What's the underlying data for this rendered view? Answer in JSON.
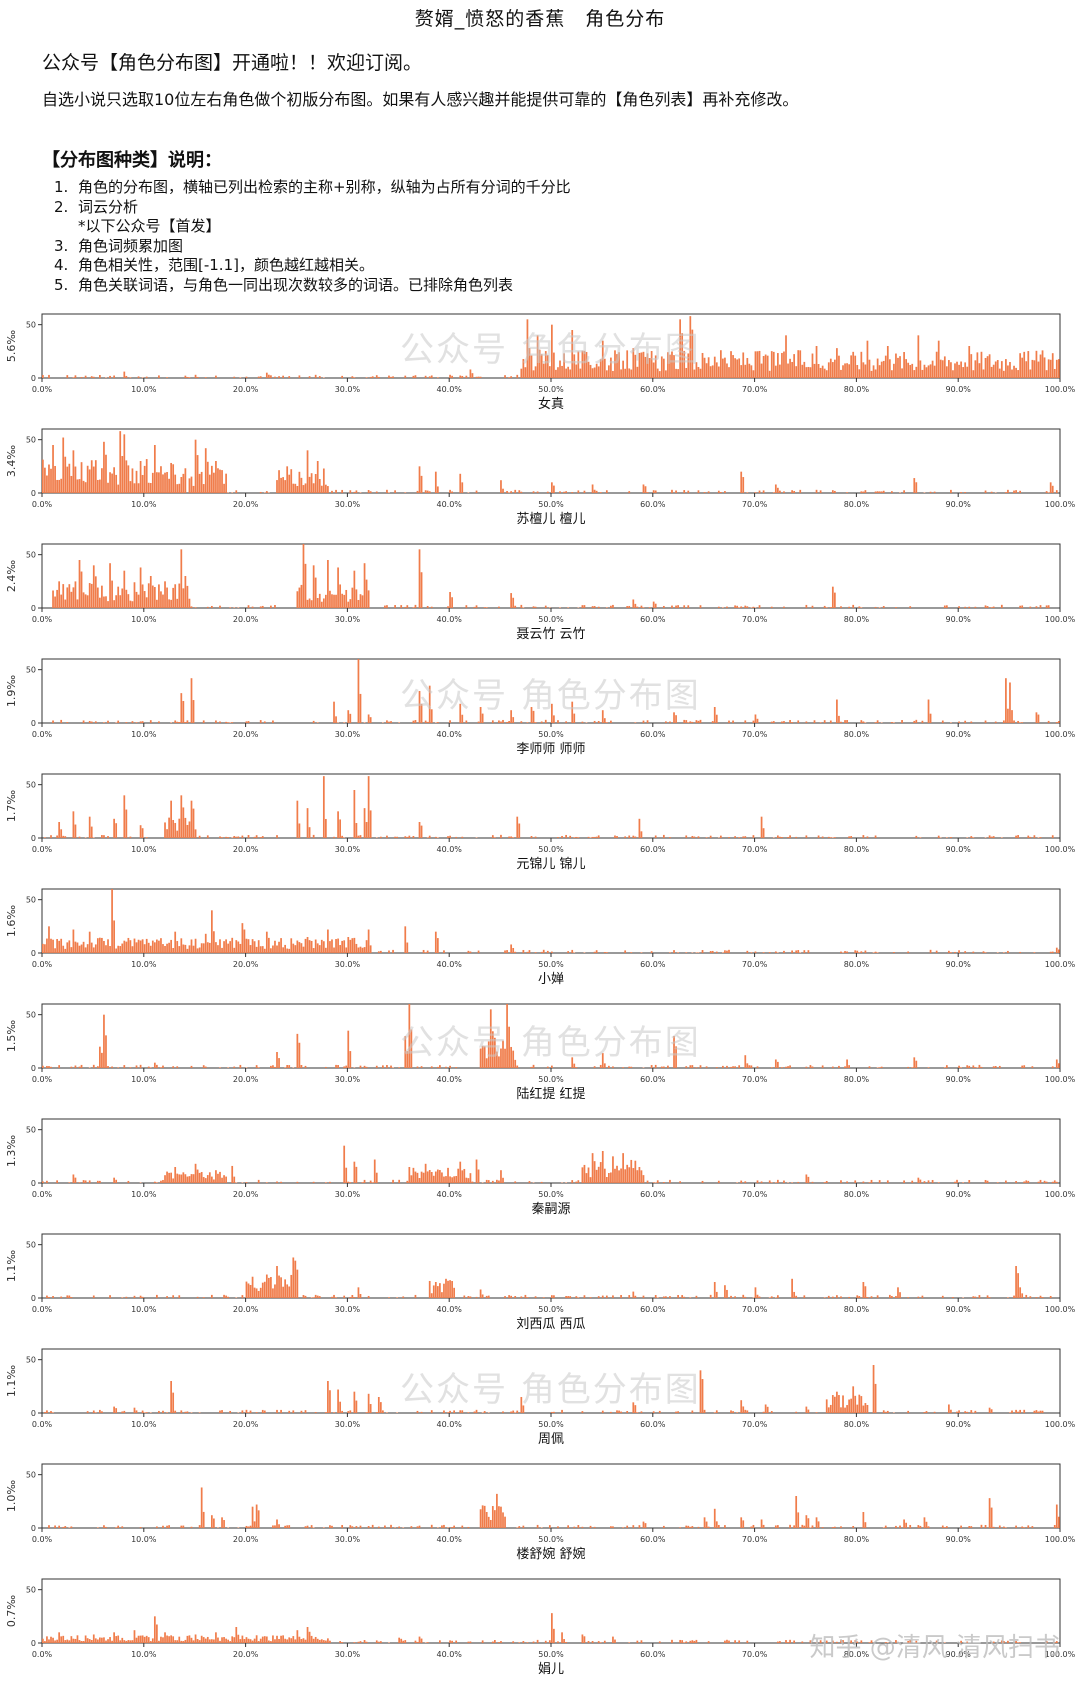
{
  "header": {
    "title": "赘婿_愤怒的香蕉　角色分布",
    "intro_line1": "公众号【角色分布图】开通啦！！欢迎订阅。",
    "intro_line2": "自选小说只选取10位左右角色做个初版分布图。如果有人感兴趣并能提供可靠的【角色列表】再补充修改。"
  },
  "notes": {
    "title": "【分布图种类】说明：",
    "items": [
      {
        "num": "1.",
        "text": "角色的分布图，横轴已列出检索的主称+别称，纵轴为占所有分词的千分比"
      },
      {
        "num": "2.",
        "text": "词云分析"
      },
      {
        "num": "",
        "text": "*以下公众号【首发】"
      },
      {
        "num": "3.",
        "text": "角色词频累加图"
      },
      {
        "num": "4.",
        "text": "角色相关性，范围[-1.1]，颜色越红越相关。"
      },
      {
        "num": "5.",
        "text": "角色关联词语，与角色一同出现次数较多的词语。已排除角色列表"
      }
    ]
  },
  "watermarks": {
    "main": "公众号  角色分布图",
    "footer": "知乎 @清风  清风扫书"
  },
  "colors": {
    "bar": "#f07c4a",
    "axis": "#333333"
  },
  "chart_data": [
    {
      "type": "bar",
      "title": "女真",
      "ylabel": "5.6‰",
      "ytick": "50",
      "ylim": [
        0,
        60
      ],
      "xticks": [
        "0.0%",
        "10.0%",
        "20.0%",
        "30.0%",
        "40.0%",
        "50.0%",
        "60.0%",
        "70.0%",
        "80.0%",
        "90.0%",
        "100.0%"
      ],
      "segments": [
        {
          "from": 47,
          "to": 100,
          "level": 18
        }
      ],
      "peaks": [
        [
          8,
          6
        ],
        [
          15,
          3
        ],
        [
          22,
          5
        ],
        [
          40,
          3
        ],
        [
          42,
          8
        ],
        [
          47.5,
          55
        ],
        [
          48.5,
          40
        ],
        [
          50,
          50
        ],
        [
          52,
          45
        ],
        [
          55,
          35
        ],
        [
          58,
          28
        ],
        [
          62.5,
          55
        ],
        [
          63.5,
          58
        ],
        [
          66,
          20
        ],
        [
          70,
          25
        ],
        [
          73,
          40
        ],
        [
          76,
          30
        ],
        [
          78,
          28
        ],
        [
          81,
          35
        ],
        [
          83,
          30
        ],
        [
          86,
          40
        ],
        [
          88,
          35
        ],
        [
          91,
          30
        ],
        [
          95,
          15
        ],
        [
          98,
          22
        ]
      ]
    },
    {
      "type": "bar",
      "title": "苏檀儿 檀儿",
      "ylabel": "3.4‰",
      "ytick": "50",
      "ylim": [
        0,
        60
      ],
      "xticks": [
        "0.0%",
        "10.0%",
        "20.0%",
        "30.0%",
        "40.0%",
        "50.0%",
        "60.0%",
        "70.0%",
        "80.0%",
        "90.0%",
        "100.0%"
      ],
      "segments": [
        {
          "from": 0,
          "to": 14,
          "level": 22
        },
        {
          "from": 14.5,
          "to": 18,
          "level": 18
        },
        {
          "from": 23,
          "to": 28,
          "level": 16
        }
      ],
      "peaks": [
        [
          1,
          45
        ],
        [
          2,
          52
        ],
        [
          3,
          40
        ],
        [
          6,
          48
        ],
        [
          7.5,
          58
        ],
        [
          8,
          55
        ],
        [
          9.5,
          30
        ],
        [
          11,
          45
        ],
        [
          15,
          50
        ],
        [
          16,
          42
        ],
        [
          17,
          30
        ],
        [
          24,
          25
        ],
        [
          26,
          40
        ],
        [
          27,
          30
        ],
        [
          37,
          25
        ],
        [
          38.5,
          20
        ],
        [
          41,
          18
        ],
        [
          45,
          12
        ],
        [
          50,
          10
        ],
        [
          54,
          8
        ],
        [
          59,
          8
        ],
        [
          68.5,
          20
        ],
        [
          72,
          8
        ],
        [
          85.5,
          14
        ],
        [
          99,
          10
        ]
      ]
    },
    {
      "type": "bar",
      "title": "聂云竹 云竹",
      "ylabel": "2.4‰",
      "ytick": "50",
      "ylim": [
        0,
        60
      ],
      "xticks": [
        "0.0%",
        "10.0%",
        "20.0%",
        "30.0%",
        "40.0%",
        "50.0%",
        "60.0%",
        "70.0%",
        "80.0%",
        "90.0%",
        "100.0%"
      ],
      "segments": [
        {
          "from": 1,
          "to": 14.5,
          "level": 18
        },
        {
          "from": 25,
          "to": 32,
          "level": 16
        }
      ],
      "peaks": [
        [
          1.5,
          25
        ],
        [
          3.5,
          45
        ],
        [
          5,
          40
        ],
        [
          6.5,
          42
        ],
        [
          8,
          35
        ],
        [
          9.5,
          38
        ],
        [
          10.5,
          30
        ],
        [
          12,
          25
        ],
        [
          13.5,
          55
        ],
        [
          14,
          30
        ],
        [
          25.5,
          60
        ],
        [
          26.5,
          40
        ],
        [
          28,
          45
        ],
        [
          29,
          38
        ],
        [
          30.5,
          35
        ],
        [
          31.5,
          42
        ],
        [
          37,
          55
        ],
        [
          40,
          15
        ],
        [
          46,
          14
        ],
        [
          58,
          8
        ],
        [
          60,
          6
        ],
        [
          77.5,
          20
        ]
      ]
    },
    {
      "type": "bar",
      "title": "李师师 师师",
      "ylabel": "1.9‰",
      "ytick": "50",
      "ylim": [
        0,
        60
      ],
      "xticks": [
        "0.0%",
        "10.0%",
        "20.0%",
        "30.0%",
        "40.0%",
        "50.0%",
        "60.0%",
        "70.0%",
        "80.0%",
        "90.0%",
        "100.0%"
      ],
      "segments": [],
      "peaks": [
        [
          13.5,
          28
        ],
        [
          14.5,
          42
        ],
        [
          28.5,
          20
        ],
        [
          30,
          12
        ],
        [
          31,
          60
        ],
        [
          32,
          8
        ],
        [
          37,
          30
        ],
        [
          38,
          35
        ],
        [
          41,
          18
        ],
        [
          43,
          15
        ],
        [
          46,
          12
        ],
        [
          48,
          15
        ],
        [
          50,
          18
        ],
        [
          52,
          20
        ],
        [
          55,
          12
        ],
        [
          62,
          10
        ],
        [
          66,
          15
        ],
        [
          70,
          8
        ],
        [
          78,
          22
        ],
        [
          87,
          22
        ],
        [
          94.5,
          42
        ],
        [
          95,
          38
        ],
        [
          97.5,
          10
        ]
      ]
    },
    {
      "type": "bar",
      "title": "元锦儿 锦儿",
      "ylabel": "1.7‰",
      "ytick": "50",
      "ylim": [
        0,
        60
      ],
      "xticks": [
        "0.0%",
        "10.0%",
        "20.0%",
        "30.0%",
        "40.0%",
        "50.0%",
        "60.0%",
        "70.0%",
        "80.0%",
        "90.0%",
        "100.0%"
      ],
      "segments": [
        {
          "from": 12,
          "to": 15,
          "level": 15
        }
      ],
      "peaks": [
        [
          1.5,
          15
        ],
        [
          3,
          25
        ],
        [
          4.5,
          20
        ],
        [
          7,
          18
        ],
        [
          8,
          40
        ],
        [
          9.5,
          12
        ],
        [
          12.5,
          35
        ],
        [
          13.5,
          40
        ],
        [
          14.5,
          35
        ],
        [
          25,
          35
        ],
        [
          26,
          28
        ],
        [
          27.5,
          58
        ],
        [
          29,
          25
        ],
        [
          30.5,
          45
        ],
        [
          31.5,
          28
        ],
        [
          32,
          58
        ],
        [
          37,
          15
        ],
        [
          46.5,
          20
        ],
        [
          58.5,
          18
        ],
        [
          70.5,
          20
        ]
      ]
    },
    {
      "type": "bar",
      "title": "小婵",
      "ylabel": "1.6‰",
      "ytick": "50",
      "ylim": [
        0,
        60
      ],
      "xticks": [
        "0.0%",
        "10.0%",
        "20.0%",
        "30.0%",
        "40.0%",
        "50.0%",
        "60.0%",
        "70.0%",
        "80.0%",
        "90.0%",
        "100.0%"
      ],
      "segments": [
        {
          "from": 0,
          "to": 32,
          "level": 10
        }
      ],
      "peaks": [
        [
          0.5,
          25
        ],
        [
          3,
          22
        ],
        [
          4.5,
          20
        ],
        [
          6.8,
          60
        ],
        [
          8.5,
          12
        ],
        [
          11,
          10
        ],
        [
          13,
          20
        ],
        [
          16,
          18
        ],
        [
          16.5,
          40
        ],
        [
          19.5,
          28
        ],
        [
          22,
          20
        ],
        [
          26,
          15
        ],
        [
          28,
          22
        ],
        [
          30,
          15
        ],
        [
          32,
          22
        ],
        [
          35.5,
          25
        ],
        [
          38.5,
          20
        ],
        [
          46,
          8
        ],
        [
          99.5,
          5
        ]
      ]
    },
    {
      "type": "bar",
      "title": "陆红提 红提",
      "ylabel": "1.5‰",
      "ytick": "50",
      "ylim": [
        0,
        60
      ],
      "xticks": [
        "0.0%",
        "10.0%",
        "20.0%",
        "30.0%",
        "40.0%",
        "50.0%",
        "60.0%",
        "70.0%",
        "80.0%",
        "90.0%",
        "100.0%"
      ],
      "segments": [
        {
          "from": 43,
          "to": 46.5,
          "level": 20
        }
      ],
      "peaks": [
        [
          5.5,
          20
        ],
        [
          6,
          50
        ],
        [
          11,
          5
        ],
        [
          23,
          15
        ],
        [
          25,
          32
        ],
        [
          30,
          35
        ],
        [
          35.5,
          30
        ],
        [
          36,
          60
        ],
        [
          44,
          55
        ],
        [
          45.5,
          60
        ],
        [
          52,
          10
        ],
        [
          55,
          14
        ],
        [
          62,
          30
        ],
        [
          69,
          12
        ],
        [
          72,
          8
        ],
        [
          79,
          8
        ],
        [
          85.5,
          10
        ],
        [
          99.5,
          8
        ]
      ]
    },
    {
      "type": "bar",
      "title": "秦嗣源",
      "ylabel": "1.3‰",
      "ytick": "50",
      "ylim": [
        0,
        60
      ],
      "xticks": [
        "0.0%",
        "10.0%",
        "20.0%",
        "30.0%",
        "40.0%",
        "50.0%",
        "60.0%",
        "70.0%",
        "80.0%",
        "90.0%",
        "100.0%"
      ],
      "segments": [
        {
          "from": 12,
          "to": 18,
          "level": 8
        },
        {
          "from": 36,
          "to": 42,
          "level": 10
        },
        {
          "from": 53,
          "to": 59,
          "level": 15
        }
      ],
      "peaks": [
        [
          3,
          8
        ],
        [
          7,
          5
        ],
        [
          13,
          15
        ],
        [
          15,
          18
        ],
        [
          17,
          12
        ],
        [
          18.5,
          16
        ],
        [
          29.5,
          35
        ],
        [
          30.5,
          20
        ],
        [
          32.5,
          22
        ],
        [
          36,
          15
        ],
        [
          37.5,
          18
        ],
        [
          41,
          20
        ],
        [
          42.5,
          22
        ],
        [
          45,
          12
        ],
        [
          54,
          28
        ],
        [
          55,
          30
        ],
        [
          56,
          25
        ],
        [
          57,
          28
        ],
        [
          58.5,
          15
        ],
        [
          75,
          8
        ],
        [
          86,
          5
        ]
      ]
    },
    {
      "type": "bar",
      "title": "刘西瓜 西瓜",
      "ylabel": "1.1‰",
      "ytick": "50",
      "ylim": [
        0,
        60
      ],
      "xticks": [
        "0.0%",
        "10.0%",
        "20.0%",
        "30.0%",
        "40.0%",
        "50.0%",
        "60.0%",
        "70.0%",
        "80.0%",
        "90.0%",
        "100.0%"
      ],
      "segments": [
        {
          "from": 20,
          "to": 25,
          "level": 15
        },
        {
          "from": 38,
          "to": 40.5,
          "level": 12
        }
      ],
      "peaks": [
        [
          20.5,
          15
        ],
        [
          22,
          22
        ],
        [
          23,
          30
        ],
        [
          24.5,
          38
        ],
        [
          24.8,
          35
        ],
        [
          31,
          10
        ],
        [
          38.5,
          15
        ],
        [
          39.5,
          18
        ],
        [
          43,
          8
        ],
        [
          58,
          6
        ],
        [
          66,
          15
        ],
        [
          67,
          12
        ],
        [
          70,
          10
        ],
        [
          73.5,
          18
        ],
        [
          80.5,
          15
        ],
        [
          84,
          10
        ],
        [
          95.5,
          30
        ],
        [
          96,
          10
        ]
      ]
    },
    {
      "type": "bar",
      "title": "周佩",
      "ylabel": "1.1‰",
      "ytick": "50",
      "ylim": [
        0,
        60
      ],
      "xticks": [
        "0.0%",
        "10.0%",
        "20.0%",
        "30.0%",
        "40.0%",
        "50.0%",
        "60.0%",
        "70.0%",
        "80.0%",
        "90.0%",
        "100.0%"
      ],
      "segments": [
        {
          "from": 77,
          "to": 81,
          "level": 12
        }
      ],
      "peaks": [
        [
          7,
          6
        ],
        [
          9,
          5
        ],
        [
          12.5,
          30
        ],
        [
          28,
          30
        ],
        [
          29,
          22
        ],
        [
          30.5,
          20
        ],
        [
          32,
          18
        ],
        [
          33,
          15
        ],
        [
          47,
          15
        ],
        [
          58,
          10
        ],
        [
          64.5,
          40
        ],
        [
          68.5,
          12
        ],
        [
          71,
          8
        ],
        [
          75,
          6
        ],
        [
          78,
          20
        ],
        [
          79.5,
          25
        ],
        [
          81.5,
          45
        ],
        [
          89,
          8
        ],
        [
          93,
          5
        ]
      ]
    },
    {
      "type": "bar",
      "title": "楼舒婉 舒婉",
      "ylabel": "1.0‰",
      "ytick": "50",
      "ylim": [
        0,
        60
      ],
      "xticks": [
        "0.0%",
        "10.0%",
        "20.0%",
        "30.0%",
        "40.0%",
        "50.0%",
        "60.0%",
        "70.0%",
        "80.0%",
        "90.0%",
        "100.0%"
      ],
      "segments": [
        {
          "from": 43,
          "to": 45.5,
          "level": 15
        }
      ],
      "peaks": [
        [
          15.5,
          38
        ],
        [
          16.5,
          12
        ],
        [
          17.5,
          10
        ],
        [
          20.5,
          20
        ],
        [
          21,
          22
        ],
        [
          23,
          8
        ],
        [
          43.5,
          15
        ],
        [
          44.5,
          32
        ],
        [
          45,
          20
        ],
        [
          59,
          6
        ],
        [
          65,
          10
        ],
        [
          66,
          18
        ],
        [
          68.5,
          10
        ],
        [
          70.5,
          8
        ],
        [
          74,
          30
        ],
        [
          75,
          12
        ],
        [
          76,
          10
        ],
        [
          80.5,
          15
        ],
        [
          84.5,
          8
        ],
        [
          86.5,
          10
        ],
        [
          93,
          28
        ],
        [
          99.5,
          22
        ]
      ]
    },
    {
      "type": "bar",
      "title": "娟儿",
      "ylabel": "0.7‰",
      "ytick": "50",
      "ylim": [
        0,
        60
      ],
      "xticks": [
        "0.0%",
        "10.0%",
        "20.0%",
        "30.0%",
        "40.0%",
        "50.0%",
        "60.0%",
        "70.0%",
        "80.0%",
        "90.0%",
        "100.0%"
      ],
      "segments": [
        {
          "from": 0,
          "to": 28,
          "level": 5
        }
      ],
      "peaks": [
        [
          1.5,
          10
        ],
        [
          5,
          8
        ],
        [
          7,
          10
        ],
        [
          9,
          12
        ],
        [
          11,
          25
        ],
        [
          12,
          10
        ],
        [
          15,
          8
        ],
        [
          17,
          10
        ],
        [
          19,
          15
        ],
        [
          25,
          12
        ],
        [
          26,
          15
        ],
        [
          35,
          5
        ],
        [
          37,
          6
        ],
        [
          50,
          28
        ],
        [
          51,
          10
        ],
        [
          53,
          8
        ],
        [
          56,
          6
        ]
      ]
    }
  ]
}
